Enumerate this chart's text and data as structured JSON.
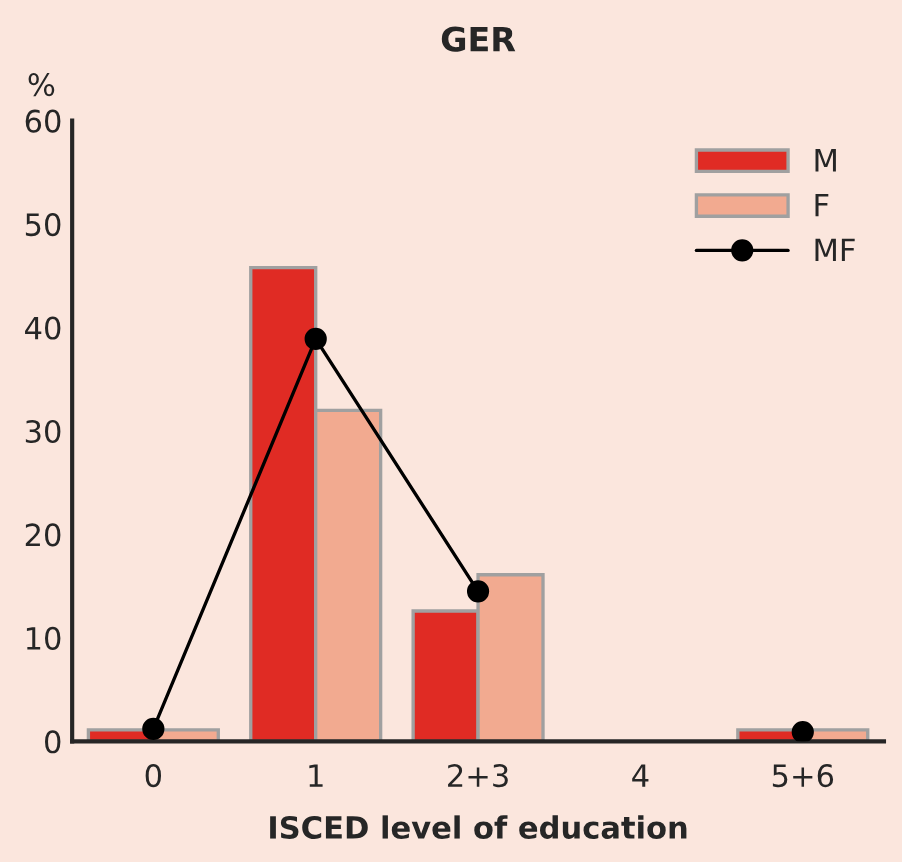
{
  "chart_data": {
    "type": "bar",
    "title": "GER",
    "xlabel": "ISCED level of education",
    "ylabel": "%",
    "categories": [
      "0",
      "1",
      "2+3",
      "4",
      "5+6"
    ],
    "series": [
      {
        "name": "M",
        "color": "#e02b24",
        "values": [
          1.1,
          45.8,
          12.6,
          null,
          1.1
        ]
      },
      {
        "name": "F",
        "color": "#f2aa90",
        "values": [
          1.1,
          32.0,
          16.1,
          null,
          1.1
        ]
      },
      {
        "name": "MF",
        "type": "line",
        "color": "#000000",
        "marker": "circle",
        "values": [
          1.2,
          38.9,
          14.5,
          null,
          0.9
        ]
      }
    ],
    "ylim": [
      0,
      60
    ],
    "yticks": [
      0,
      10,
      20,
      30,
      40,
      50,
      60
    ],
    "grid": false,
    "legend": "top right"
  }
}
